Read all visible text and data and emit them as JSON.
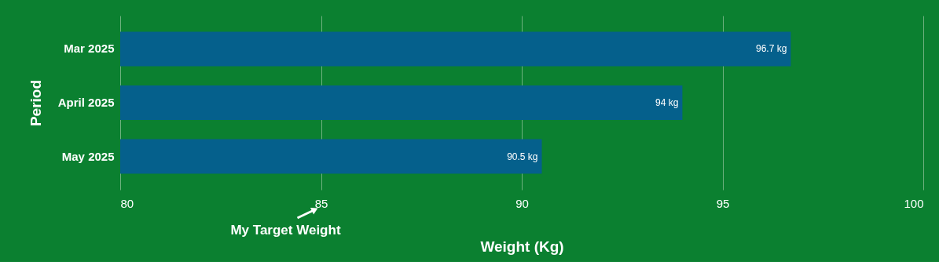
{
  "chart_data": {
    "type": "bar",
    "orientation": "horizontal",
    "categories": [
      "Mar 2025",
      "April 2025",
      "May 2025"
    ],
    "values": [
      96.7,
      94,
      90.5
    ],
    "value_labels": [
      "96.7 kg",
      "94 kg",
      "90.5 kg"
    ],
    "color": "#05608c",
    "xlim": [
      80,
      100
    ],
    "xticks": [
      80,
      85,
      90,
      95,
      100
    ],
    "grid": "x",
    "xlabel": "Weight (Kg)",
    "ylabel": "Period",
    "annotations": [
      "My Target Weight"
    ]
  }
}
